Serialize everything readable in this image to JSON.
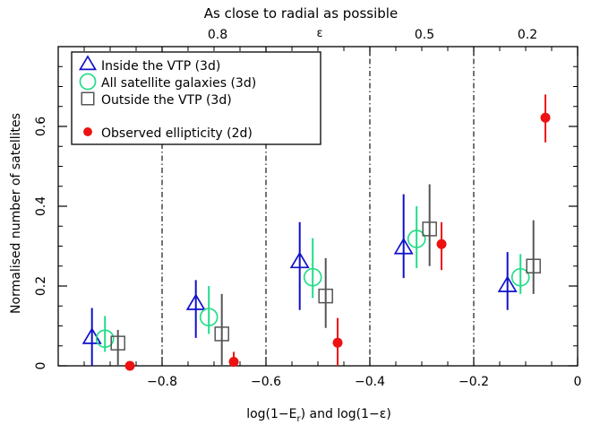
{
  "chart_data": {
    "type": "scatter",
    "top_title": "As close to radial as possible",
    "top_axis_symbol": "ε",
    "top_tick_labels": [
      "0.8",
      "0.5",
      "0.2"
    ],
    "xlabel": "log(1−E",
    "xlabel_sub": "r",
    "xlabel_rest": ")   and   log(1−ε)",
    "ylabel": "Normalised number of satellites",
    "xlim": [
      -1.0,
      0.0
    ],
    "ylim": [
      0.0,
      0.8
    ],
    "x_ticks": [
      "−0.8",
      "−0.6",
      "−0.4",
      "−0.2",
      "0"
    ],
    "x_tick_values": [
      -0.8,
      -0.6,
      -0.4,
      -0.2,
      0.0
    ],
    "y_ticks": [
      "0",
      "0.2",
      "0.4",
      "0.6"
    ],
    "y_tick_values": [
      0.0,
      0.2,
      0.4,
      0.6
    ],
    "bin_dividers": [
      -0.8,
      -0.6,
      -0.4,
      -0.2
    ],
    "legend_position": "top-left",
    "series": [
      {
        "name": "Inside the VTP (3d)",
        "marker": "triangle",
        "color": "#1010cc",
        "points": [
          {
            "x": -0.935,
            "y": 0.07,
            "lo": 0.0,
            "hi": 0.145
          },
          {
            "x": -0.735,
            "y": 0.155,
            "lo": 0.07,
            "hi": 0.215
          },
          {
            "x": -0.535,
            "y": 0.26,
            "lo": 0.14,
            "hi": 0.36
          },
          {
            "x": -0.335,
            "y": 0.295,
            "lo": 0.22,
            "hi": 0.43
          },
          {
            "x": -0.135,
            "y": 0.2,
            "lo": 0.14,
            "hi": 0.285
          }
        ]
      },
      {
        "name": "All satellite galaxies (3d)",
        "marker": "circle",
        "color": "#22dd88",
        "points": [
          {
            "x": -0.91,
            "y": 0.068,
            "lo": 0.035,
            "hi": 0.125
          },
          {
            "x": -0.71,
            "y": 0.122,
            "lo": 0.08,
            "hi": 0.2
          },
          {
            "x": -0.51,
            "y": 0.222,
            "lo": 0.17,
            "hi": 0.32
          },
          {
            "x": -0.31,
            "y": 0.318,
            "lo": 0.245,
            "hi": 0.4
          },
          {
            "x": -0.11,
            "y": 0.222,
            "lo": 0.18,
            "hi": 0.28
          }
        ]
      },
      {
        "name": "Outside the VTP (3d)",
        "marker": "square",
        "color": "#555555",
        "points": [
          {
            "x": -0.885,
            "y": 0.057,
            "lo": 0.0,
            "hi": 0.09
          },
          {
            "x": -0.685,
            "y": 0.08,
            "lo": 0.0,
            "hi": 0.18
          },
          {
            "x": -0.485,
            "y": 0.175,
            "lo": 0.095,
            "hi": 0.27
          },
          {
            "x": -0.285,
            "y": 0.343,
            "lo": 0.25,
            "hi": 0.455
          },
          {
            "x": -0.085,
            "y": 0.25,
            "lo": 0.18,
            "hi": 0.365
          }
        ]
      },
      {
        "name": "Observed ellipticity (2d)",
        "marker": "filled-circle",
        "color": "#ee1111",
        "points": [
          {
            "x": -0.862,
            "y": 0.0,
            "lo": 0.0,
            "hi": 0.0
          },
          {
            "x": -0.662,
            "y": 0.01,
            "lo": 0.0,
            "hi": 0.035
          },
          {
            "x": -0.462,
            "y": 0.058,
            "lo": 0.0,
            "hi": 0.12
          },
          {
            "x": -0.262,
            "y": 0.305,
            "lo": 0.24,
            "hi": 0.36
          },
          {
            "x": -0.062,
            "y": 0.622,
            "lo": 0.56,
            "hi": 0.68
          }
        ]
      }
    ]
  }
}
